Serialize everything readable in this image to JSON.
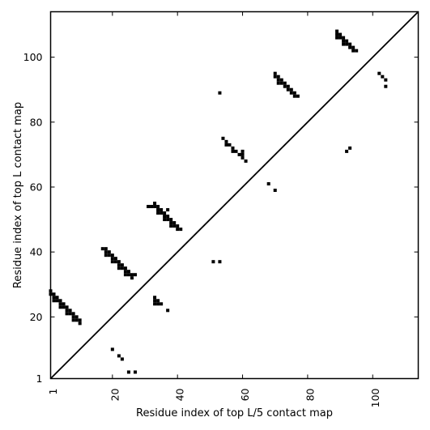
{
  "chart_data": {
    "type": "scatter",
    "title": "",
    "xlabel": "Residue index of top L/5 contact map",
    "ylabel": "Residue index of top L contact map",
    "xlim": [
      1,
      114
    ],
    "ylim": [
      1,
      114
    ],
    "xticks": [
      1,
      20,
      40,
      60,
      80,
      100
    ],
    "yticks": [
      1,
      20,
      40,
      60,
      80,
      100
    ],
    "x_tick_labels": [
      "1",
      "20",
      "40",
      "60",
      "80",
      "100"
    ],
    "y_tick_labels": [
      "1",
      "20",
      "40",
      "60",
      "80",
      "100"
    ],
    "grid": false,
    "diagonal_line": true,
    "marker_color": "#000000",
    "series": [
      {
        "points": [
          [
            1,
            28
          ],
          [
            1,
            27
          ],
          [
            2,
            27
          ],
          [
            2,
            26
          ],
          [
            2,
            25
          ],
          [
            3,
            26
          ],
          [
            3,
            25
          ],
          [
            4,
            25
          ],
          [
            4,
            24
          ],
          [
            4,
            23
          ],
          [
            5,
            24
          ],
          [
            5,
            23
          ],
          [
            6,
            23
          ],
          [
            6,
            22
          ],
          [
            6,
            21
          ],
          [
            7,
            22
          ],
          [
            7,
            21
          ],
          [
            8,
            21
          ],
          [
            8,
            20
          ],
          [
            8,
            19
          ],
          [
            9,
            20
          ],
          [
            9,
            19
          ],
          [
            10,
            19
          ],
          [
            10,
            18
          ],
          [
            17,
            41
          ],
          [
            18,
            41
          ],
          [
            18,
            40
          ],
          [
            18,
            39
          ],
          [
            19,
            40
          ],
          [
            19,
            39
          ],
          [
            20,
            39
          ],
          [
            20,
            38
          ],
          [
            20,
            37
          ],
          [
            21,
            38
          ],
          [
            21,
            37
          ],
          [
            22,
            37
          ],
          [
            22,
            36
          ],
          [
            22,
            35
          ],
          [
            23,
            36
          ],
          [
            23,
            35
          ],
          [
            24,
            35
          ],
          [
            24,
            34
          ],
          [
            24,
            33
          ],
          [
            25,
            34
          ],
          [
            25,
            33
          ],
          [
            26,
            33
          ],
          [
            26,
            32
          ],
          [
            27,
            33
          ],
          [
            31,
            54
          ],
          [
            32,
            54
          ],
          [
            33,
            55
          ],
          [
            33,
            54
          ],
          [
            34,
            54
          ],
          [
            34,
            53
          ],
          [
            34,
            52
          ],
          [
            35,
            53
          ],
          [
            35,
            52
          ],
          [
            36,
            52
          ],
          [
            36,
            51
          ],
          [
            36,
            50
          ],
          [
            37,
            53
          ],
          [
            37,
            51
          ],
          [
            37,
            50
          ],
          [
            38,
            50
          ],
          [
            38,
            49
          ],
          [
            38,
            48
          ],
          [
            39,
            49
          ],
          [
            39,
            48
          ],
          [
            40,
            48
          ],
          [
            40,
            47
          ],
          [
            41,
            47
          ],
          [
            33,
            26
          ],
          [
            33,
            25
          ],
          [
            33,
            24
          ],
          [
            34,
            25
          ],
          [
            34,
            24
          ],
          [
            35,
            24
          ],
          [
            37,
            22
          ],
          [
            20,
            10
          ],
          [
            22,
            8
          ],
          [
            23,
            7
          ],
          [
            25,
            3
          ],
          [
            27,
            3
          ],
          [
            51,
            37
          ],
          [
            53,
            37
          ],
          [
            53,
            89
          ],
          [
            54,
            75
          ],
          [
            55,
            74
          ],
          [
            55,
            73
          ],
          [
            56,
            73
          ],
          [
            57,
            72
          ],
          [
            57,
            71
          ],
          [
            58,
            71
          ],
          [
            59,
            70
          ],
          [
            60,
            71
          ],
          [
            60,
            70
          ],
          [
            60,
            69
          ],
          [
            61,
            68
          ],
          [
            68,
            61
          ],
          [
            70,
            59
          ],
          [
            70,
            95
          ],
          [
            70,
            94
          ],
          [
            71,
            94
          ],
          [
            71,
            93
          ],
          [
            71,
            92
          ],
          [
            72,
            93
          ],
          [
            72,
            92
          ],
          [
            73,
            92
          ],
          [
            73,
            91
          ],
          [
            74,
            91
          ],
          [
            74,
            90
          ],
          [
            75,
            90
          ],
          [
            75,
            89
          ],
          [
            76,
            89
          ],
          [
            76,
            88
          ],
          [
            77,
            88
          ],
          [
            89,
            108
          ],
          [
            89,
            107
          ],
          [
            89,
            106
          ],
          [
            90,
            107
          ],
          [
            90,
            106
          ],
          [
            91,
            106
          ],
          [
            91,
            105
          ],
          [
            91,
            104
          ],
          [
            92,
            105
          ],
          [
            92,
            104
          ],
          [
            93,
            104
          ],
          [
            93,
            103
          ],
          [
            94,
            103
          ],
          [
            94,
            102
          ],
          [
            95,
            102
          ],
          [
            92,
            71
          ],
          [
            93,
            72
          ],
          [
            102,
            95
          ],
          [
            103,
            94
          ],
          [
            104,
            93
          ],
          [
            104,
            91
          ]
        ]
      }
    ]
  }
}
